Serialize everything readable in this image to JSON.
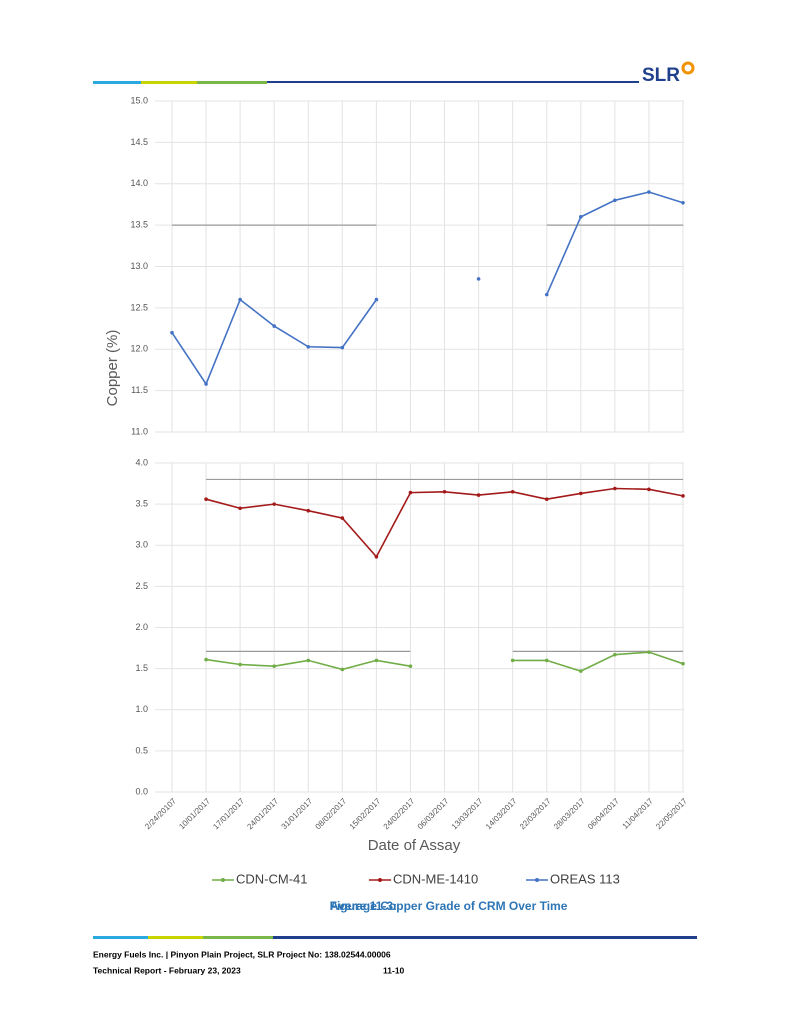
{
  "header": {
    "logo": "SLR"
  },
  "chart_data": {
    "type": "line",
    "y_label": "Copper (%)",
    "x_label": "Date of Assay",
    "categories": [
      "2/24/20107",
      "10/01/2017",
      "17/01/2017",
      "24/01/2017",
      "31/01/2017",
      "08/02/2017",
      "15/02/2017",
      "24/02/2017",
      "06/03/2017",
      "13/03/2017",
      "14/03/2017",
      "22/03/2017",
      "28/03/2017",
      "06/04/2017",
      "11/04/2017",
      "22/05/2017"
    ],
    "ylim": [
      0,
      4
    ],
    "yticks": [
      {
        "value": 0,
        "label": "0.0"
      },
      {
        "value": 0.5,
        "label": "0.5"
      },
      {
        "value": 1,
        "label": "1.0"
      },
      {
        "value": 1.5,
        "label": "1.5"
      },
      {
        "value": 2,
        "label": "2.0"
      },
      {
        "value": 2.5,
        "label": "2.5"
      },
      {
        "value": 3,
        "label": "3.0"
      },
      {
        "value": 3.5,
        "label": "3.5"
      },
      {
        "value": 4,
        "label": "4.0"
      }
    ],
    "upper_ylim": [
      11,
      15
    ],
    "upper_yticks": [
      {
        "value": 11,
        "label": "11.0"
      },
      {
        "value": 11.5,
        "label": "11.5"
      },
      {
        "value": 12,
        "label": "12.0"
      },
      {
        "value": 12.5,
        "label": "12.5"
      },
      {
        "value": 13,
        "label": "13.0"
      },
      {
        "value": 13.5,
        "label": "13.5"
      },
      {
        "value": 14,
        "label": "14.0"
      },
      {
        "value": 14.5,
        "label": "14.5"
      },
      {
        "value": 15,
        "label": "15.0"
      }
    ],
    "grid": true,
    "series": [
      {
        "name": "CDN-CM-41",
        "color": "#70ad47",
        "values": [
          null,
          1.61,
          1.55,
          1.53,
          1.6,
          1.49,
          1.6,
          1.53,
          null,
          null,
          1.6,
          1.6,
          1.47,
          1.67,
          1.7,
          1.56
        ]
      },
      {
        "name": "CDN-ME-1410",
        "color": "#a31a1a",
        "values": [
          null,
          3.56,
          3.45,
          3.5,
          3.42,
          3.33,
          2.86,
          3.64,
          3.65,
          3.61,
          3.65,
          3.56,
          3.63,
          3.69,
          3.68,
          3.6
        ]
      },
      {
        "name": "OREAS 113",
        "color": "#4472c4",
        "axis": "upper",
        "values": [
          12.2,
          11.58,
          12.6,
          12.28,
          12.03,
          12.02,
          12.6,
          null,
          null,
          12.85,
          null,
          12.66,
          13.6,
          13.8,
          13.9,
          13.77
        ]
      }
    ],
    "reference_series": [
      {
        "color": "#999999",
        "values": [
          null,
          1.71,
          1.71,
          1.71,
          1.71,
          1.71,
          1.71,
          1.71,
          null,
          null,
          1.71,
          1.71,
          1.71,
          1.71,
          1.71,
          1.71
        ]
      },
      {
        "color": "#999999",
        "values": [
          null,
          3.8,
          3.8,
          3.8,
          3.8,
          3.8,
          3.8,
          3.8,
          3.8,
          3.8,
          3.8,
          3.8,
          3.8,
          3.8,
          3.8,
          3.8
        ]
      },
      {
        "color": "#999999",
        "axis": "upper",
        "values": [
          13.5,
          13.5,
          13.5,
          13.5,
          13.5,
          13.5,
          13.5,
          null,
          null,
          null,
          null,
          13.5,
          13.5,
          13.5,
          13.5,
          13.5
        ]
      }
    ],
    "legend": "bottom"
  },
  "caption": {
    "number": "Figure 11-3:",
    "title": "Average Copper Grade of CRM Over Time"
  },
  "footer": {
    "line1": "Energy Fuels Inc. | Pinyon Plain Project, SLR Project No:  138.02544.00006",
    "line2": "Technical Report -  February 23, 2023",
    "page": "11-10"
  }
}
